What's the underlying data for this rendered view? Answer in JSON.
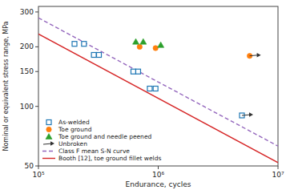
{
  "chart_data": {
    "type": "scatter",
    "log": true,
    "xlabel": "Endurance, cycles",
    "ylabel": "Nominal or equivalent stress range, MPa",
    "xlim": [
      100000,
      10000000
    ],
    "ylim": [
      50,
      320
    ],
    "xticks": [
      {
        "value": 100000,
        "label": "10⁵"
      },
      {
        "value": 1000000,
        "label": "10⁶"
      },
      {
        "value": 10000000,
        "label": "10⁷"
      }
    ],
    "yticks": [
      50,
      100,
      150,
      200,
      300
    ],
    "grid": false,
    "legend": "lower left",
    "series": [
      {
        "name": "As-welded",
        "type": "scatter",
        "marker": "open-square",
        "color": "#1f77b4",
        "x": [
          200000,
          240000,
          290000,
          320000,
          620000,
          680000,
          850000,
          950000,
          5000000
        ],
        "values": [
          207,
          207,
          182,
          182,
          150,
          150,
          123,
          123,
          90
        ]
      },
      {
        "name": "Toe ground",
        "type": "scatter",
        "marker": "circle",
        "color": "#ff7f0e",
        "x": [
          700000,
          950000,
          5800000
        ],
        "values": [
          200,
          197,
          180
        ]
      },
      {
        "name": "Toe ground and needle peened",
        "type": "scatter",
        "marker": "triangle",
        "color": "#2ca02c",
        "x": [
          650000,
          750000,
          1050000
        ],
        "values": [
          212,
          212,
          204
        ]
      },
      {
        "name": "Unbroken",
        "type": "scatter",
        "marker": "arrow",
        "color": "#333333",
        "x": [
          5000000,
          5800000
        ],
        "values": [
          90,
          180
        ]
      },
      {
        "name": "Class F mean S-N curve",
        "type": "line",
        "line_style": "dashed",
        "color": "#9467bd",
        "x": [
          100000,
          10000000
        ],
        "values": [
          280,
          63
        ]
      },
      {
        "name": "Booth [12], toe ground fillet welds",
        "type": "line",
        "line_style": "solid",
        "color": "#d62728",
        "x": [
          100000,
          10000000
        ],
        "values": [
          232,
          52
        ]
      }
    ]
  }
}
